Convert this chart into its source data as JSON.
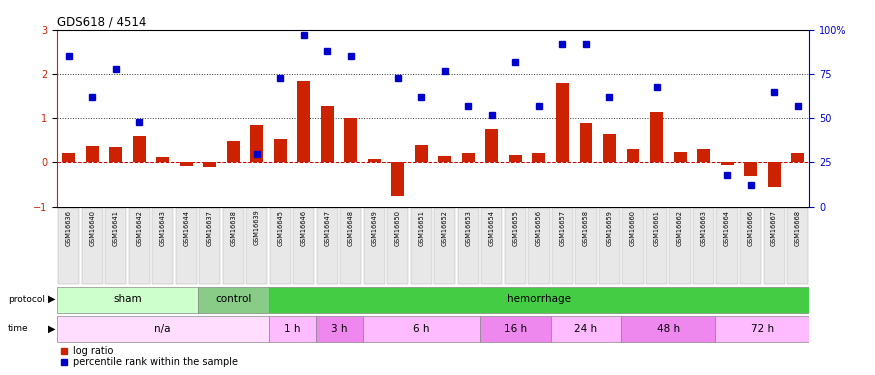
{
  "title": "GDS618 / 4514",
  "samples": [
    "GSM16636",
    "GSM16640",
    "GSM16641",
    "GSM16642",
    "GSM16643",
    "GSM16644",
    "GSM16637",
    "GSM16638",
    "GSM16639",
    "GSM16645",
    "GSM16646",
    "GSM16647",
    "GSM16648",
    "GSM16649",
    "GSM16650",
    "GSM16651",
    "GSM16652",
    "GSM16653",
    "GSM16654",
    "GSM16655",
    "GSM16656",
    "GSM16657",
    "GSM16658",
    "GSM16659",
    "GSM16660",
    "GSM16661",
    "GSM16662",
    "GSM16663",
    "GSM16664",
    "GSM16666",
    "GSM16667",
    "GSM16668"
  ],
  "log_ratio": [
    0.22,
    0.38,
    0.35,
    0.6,
    0.13,
    -0.08,
    -0.1,
    0.48,
    0.85,
    0.53,
    1.85,
    1.28,
    1.0,
    0.08,
    -0.75,
    0.4,
    0.15,
    0.21,
    0.75,
    0.18,
    0.22,
    1.8,
    0.9,
    0.65,
    0.3,
    1.15,
    0.23,
    0.3,
    -0.05,
    -0.3,
    -0.55,
    0.22
  ],
  "pct_rank_pct": [
    85,
    62,
    78,
    48,
    null,
    null,
    null,
    null,
    30,
    73,
    97,
    88,
    85,
    null,
    73,
    62,
    77,
    57,
    52,
    82,
    57,
    92,
    92,
    62,
    null,
    68,
    null,
    null,
    18,
    12,
    65,
    57
  ],
  "protocol_groups": [
    {
      "label": "sham",
      "start": 0,
      "end": 6,
      "color": "#ccffcc"
    },
    {
      "label": "control",
      "start": 6,
      "end": 9,
      "color": "#88cc88"
    },
    {
      "label": "hemorrhage",
      "start": 9,
      "end": 32,
      "color": "#44cc44"
    }
  ],
  "time_groups": [
    {
      "label": "n/a",
      "start": 0,
      "end": 9,
      "color": "#ffddff"
    },
    {
      "label": "1 h",
      "start": 9,
      "end": 11,
      "color": "#ffbbff"
    },
    {
      "label": "3 h",
      "start": 11,
      "end": 13,
      "color": "#ee88ee"
    },
    {
      "label": "6 h",
      "start": 13,
      "end": 18,
      "color": "#ffbbff"
    },
    {
      "label": "16 h",
      "start": 18,
      "end": 21,
      "color": "#ee88ee"
    },
    {
      "label": "24 h",
      "start": 21,
      "end": 24,
      "color": "#ffbbff"
    },
    {
      "label": "48 h",
      "start": 24,
      "end": 28,
      "color": "#ee88ee"
    },
    {
      "label": "72 h",
      "start": 28,
      "end": 32,
      "color": "#ffbbff"
    }
  ],
  "bar_color": "#cc2200",
  "dot_color": "#0000cc",
  "ylim_left": [
    -1,
    3
  ],
  "ylim_right": [
    0,
    100
  ],
  "yticks_left": [
    -1,
    0,
    1,
    2,
    3
  ],
  "yticks_right": [
    0,
    25,
    50,
    75,
    100
  ],
  "hline_y": [
    0,
    1,
    2
  ],
  "hline_styles": [
    "--",
    ":",
    ":"
  ],
  "hline_colors": [
    "#cc0000",
    "#333333",
    "#333333"
  ]
}
